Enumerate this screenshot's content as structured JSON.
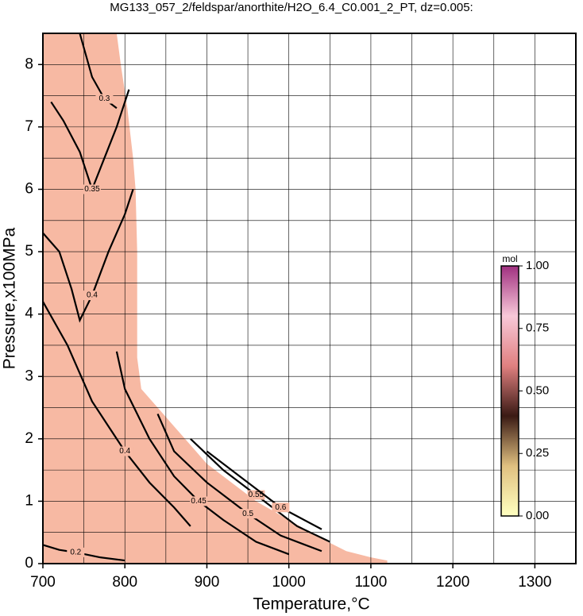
{
  "chart_data": {
    "type": "contour",
    "title": "MG133_057_2/feldspar/anorthite/H2O_6.4_C0.001_2_PT, dz=0.005:",
    "x_label": "Temperature,°C",
    "y_label": "Pressure,x100MPa",
    "xlim": [
      700,
      1350
    ],
    "ylim": [
      0,
      8.5
    ],
    "xticks": [
      700,
      800,
      900,
      1000,
      1100,
      1200,
      1300
    ],
    "yticks": [
      0,
      1,
      2,
      3,
      4,
      5,
      6,
      7,
      8
    ],
    "xgrid": [
      750,
      800,
      850,
      900,
      950,
      1000,
      1050,
      1100,
      1150,
      1200,
      1250,
      1300
    ],
    "ygrid": [
      0.5,
      1,
      1.5,
      2,
      2.5,
      3,
      3.5,
      4,
      4.5,
      5,
      5.5,
      6,
      6.5,
      7,
      7.5,
      8
    ],
    "region": {
      "color": "#f7b9a3",
      "x": [
        700,
        790,
        795,
        803,
        810,
        813,
        815,
        815,
        815,
        820,
        840,
        860,
        880,
        900,
        930,
        960,
        1000,
        1040,
        1070,
        1100,
        1120,
        1120,
        700
      ],
      "y": [
        8.5,
        8.5,
        8.0,
        7.3,
        6.5,
        6.0,
        5.0,
        4.0,
        3.3,
        2.8,
        2.5,
        2.2,
        1.9,
        1.6,
        1.3,
        1.0,
        0.7,
        0.4,
        0.2,
        0.1,
        0.05,
        0,
        0
      ]
    },
    "contours": [
      {
        "level": 0.2,
        "x": [
          700,
          720,
          740,
          770,
          800
        ],
        "y": [
          0.3,
          0.22,
          0.18,
          0.1,
          0.05
        ]
      },
      {
        "level": 0.3,
        "x": [
          745,
          760,
          775,
          790
        ],
        "y": [
          8.5,
          7.8,
          7.45,
          7.3
        ]
      },
      {
        "level": 0.35,
        "x": [
          710,
          725,
          745,
          760,
          775,
          790,
          805
        ],
        "y": [
          7.4,
          7.1,
          6.6,
          6.0,
          6.5,
          7.0,
          7.6
        ]
      },
      {
        "level": 0.4,
        "x": [
          700,
          720,
          735,
          745,
          760,
          780,
          800,
          810
        ],
        "y": [
          5.3,
          5.0,
          4.4,
          3.9,
          4.3,
          5.0,
          5.6,
          6.0
        ]
      },
      {
        "level": 0.4,
        "x": [
          700,
          730,
          760,
          780,
          800,
          830,
          860,
          880
        ],
        "y": [
          4.2,
          3.5,
          2.6,
          2.2,
          1.8,
          1.3,
          0.9,
          0.6
        ]
      },
      {
        "level": 0.45,
        "x": [
          790,
          800,
          830,
          860,
          890,
          920,
          960,
          1000
        ],
        "y": [
          3.4,
          2.8,
          2.0,
          1.4,
          1.0,
          0.7,
          0.35,
          0.15
        ]
      },
      {
        "level": 0.5,
        "x": [
          840,
          860,
          900,
          950,
          990,
          1040
        ],
        "y": [
          2.4,
          1.8,
          1.3,
          0.8,
          0.45,
          0.2
        ]
      },
      {
        "level": 0.55,
        "x": [
          880,
          920,
          960,
          1010,
          1050
        ],
        "y": [
          2.0,
          1.5,
          1.1,
          0.6,
          0.35
        ]
      },
      {
        "level": 0.6,
        "x": [
          900,
          940,
          990,
          1040
        ],
        "y": [
          1.8,
          1.4,
          0.9,
          0.55
        ]
      }
    ],
    "colorbar": {
      "label": "mol",
      "lim": [
        0,
        1
      ],
      "colors": [
        "#ffffc0",
        "#e0c080",
        "#3a1a14",
        "#e08080",
        "#f8c8d8",
        "#a03080"
      ],
      "ticks": [
        {
          "value": 0,
          "label": "0.00"
        },
        {
          "value": 0.25,
          "label": "0.25"
        },
        {
          "value": 0.5,
          "label": "0.50"
        },
        {
          "value": 0.75,
          "label": "0.75"
        },
        {
          "value": 1,
          "label": "1.00"
        }
      ]
    }
  }
}
